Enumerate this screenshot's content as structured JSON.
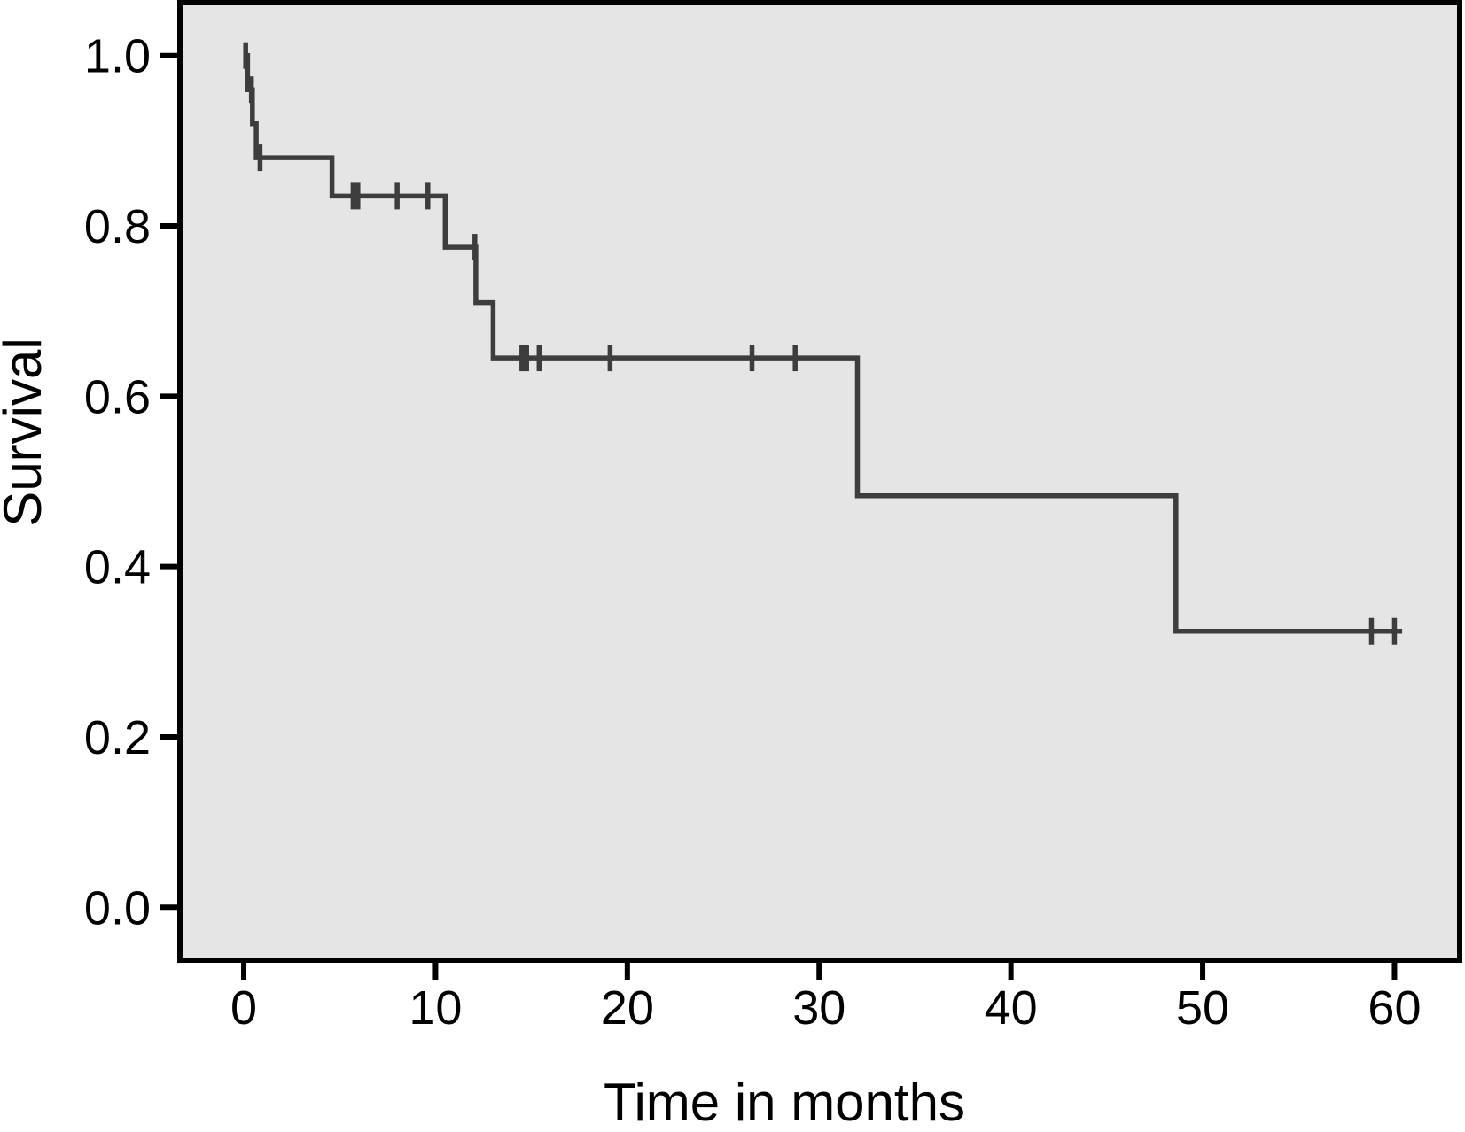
{
  "figure": {
    "background": "#ffffff",
    "plot_background": "#e5e5e5",
    "curve_color": "#3d3d3d",
    "axis_color": "#000000"
  },
  "chart_data": {
    "type": "line",
    "subtype": "kaplan-meier-step-function",
    "title": "",
    "xlabel": "Time in months",
    "ylabel": "Survival",
    "xlim": [
      -3.19,
      63.26
    ],
    "ylim": [
      -0.059,
      1.059
    ],
    "xticks": [
      0,
      10,
      20,
      30,
      40,
      50,
      60
    ],
    "xtick_labels": [
      "0",
      "10",
      "20",
      "30",
      "40",
      "50",
      "60"
    ],
    "yticks": [
      0.0,
      0.2,
      0.4,
      0.6,
      0.8,
      1.0
    ],
    "ytick_labels": [
      "0.0",
      "0.2",
      "0.4",
      "0.6",
      "0.8",
      "1.0"
    ],
    "grid": false,
    "legend": false,
    "series": [
      {
        "name": "Survival",
        "step_points": [
          [
            0,
            1.0
          ],
          [
            0.2,
            1.0
          ],
          [
            0.2,
            0.96
          ],
          [
            0.45,
            0.96
          ],
          [
            0.45,
            0.92
          ],
          [
            0.65,
            0.92
          ],
          [
            0.65,
            0.88
          ],
          [
            4.6,
            0.88
          ],
          [
            4.6,
            0.835
          ],
          [
            10.5,
            0.835
          ],
          [
            10.5,
            0.775
          ],
          [
            12.1,
            0.775
          ],
          [
            12.1,
            0.71
          ],
          [
            13.0,
            0.71
          ],
          [
            13.0,
            0.645
          ],
          [
            32.0,
            0.645
          ],
          [
            32.0,
            0.483
          ],
          [
            48.6,
            0.483
          ],
          [
            48.6,
            0.324
          ],
          [
            60.4,
            0.324
          ]
        ],
        "censor_marks": [
          [
            0.1,
            1.0
          ],
          [
            0.4,
            0.96
          ],
          [
            0.85,
            0.88
          ],
          [
            5.7,
            0.835
          ],
          [
            5.95,
            0.835
          ],
          [
            8.0,
            0.835
          ],
          [
            9.6,
            0.835
          ],
          [
            12.05,
            0.775
          ],
          [
            14.5,
            0.645
          ],
          [
            14.75,
            0.645
          ],
          [
            15.4,
            0.645
          ],
          [
            19.1,
            0.645
          ],
          [
            26.5,
            0.645
          ],
          [
            28.75,
            0.645
          ],
          [
            58.8,
            0.324
          ],
          [
            60.0,
            0.324
          ]
        ]
      }
    ]
  }
}
